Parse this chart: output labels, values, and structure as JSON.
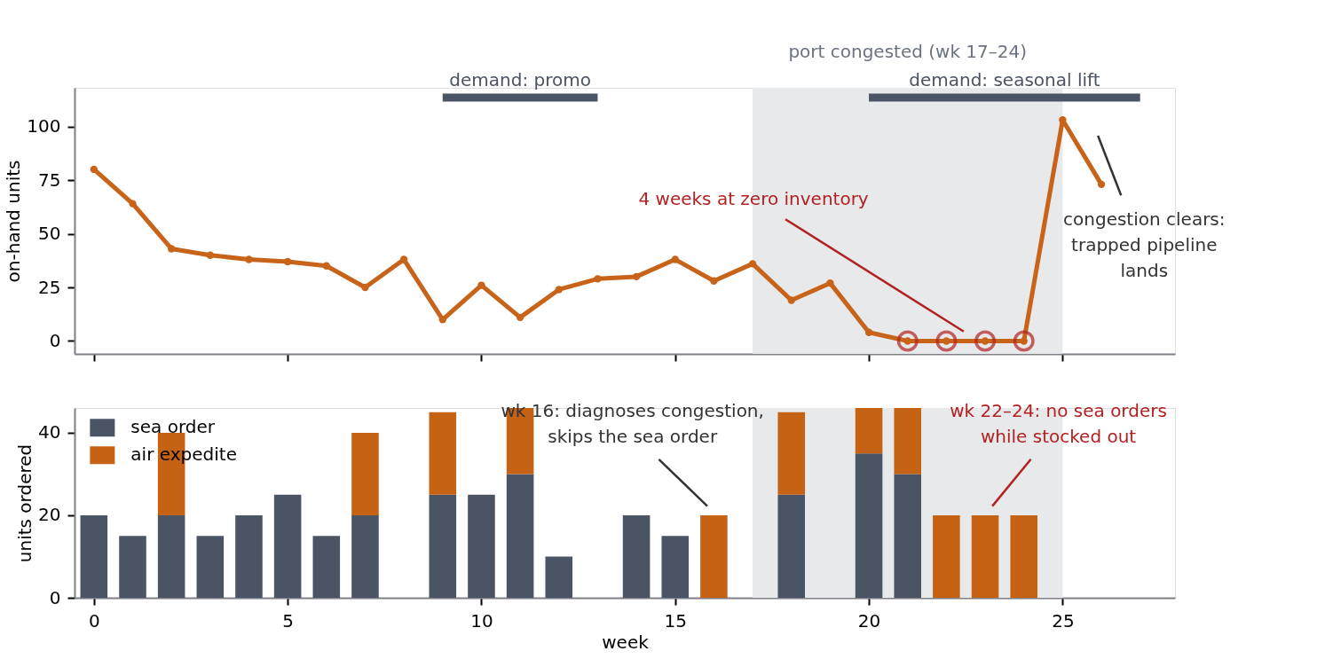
{
  "chart_data": [
    {
      "type": "line",
      "ylabel": "on-hand units",
      "x": [
        0,
        1,
        2,
        3,
        4,
        5,
        6,
        7,
        8,
        9,
        10,
        11,
        12,
        13,
        14,
        15,
        16,
        17,
        18,
        19,
        20,
        21,
        22,
        23,
        24,
        25,
        26
      ],
      "series": [
        {
          "type": "line",
          "color": "#c8641a",
          "marker": "circle",
          "values": [
            80,
            64,
            43,
            40,
            38,
            37,
            35,
            25,
            38,
            10,
            26,
            11,
            24,
            29,
            30,
            38,
            28,
            36,
            19,
            27,
            4,
            0,
            0,
            0,
            0,
            103,
            73
          ]
        },
        {
          "type": "scatter",
          "color": "#b22222",
          "marker": "circle",
          "x": [
            21,
            22,
            23,
            24
          ],
          "values": [
            0,
            0,
            0,
            0
          ]
        },
        {
          "type": "line",
          "name": "demand: promo",
          "color": "#4a5464",
          "marker": "none",
          "x": [
            9,
            13
          ],
          "values": [
            113.5,
            113.5
          ]
        },
        {
          "type": "line",
          "name": "demand: seasonal lift",
          "color": "#4a5464",
          "marker": "none",
          "x": [
            20,
            27
          ],
          "values": [
            113.5,
            113.5
          ]
        }
      ],
      "xlim": [
        -0.5,
        27.9
      ],
      "xticks": [
        0,
        5,
        10,
        15,
        20,
        25
      ],
      "ylim": [
        -6,
        118
      ],
      "yticks": [
        0,
        25,
        50,
        75,
        100
      ],
      "tick_labels": "y",
      "grid": false,
      "legend": false,
      "bands": [
        {
          "axis": "x",
          "from": 17,
          "to": 25,
          "label": "port congested (wk 17–24)",
          "color": "#e8e9eb"
        }
      ],
      "annotations": [
        "4 weeks at zero inventory",
        "congestion clears:\ntrapped pipeline\nlands"
      ]
    },
    {
      "type": "bar",
      "stacked": true,
      "xlabel": "week",
      "ylabel": "units ordered",
      "x": [
        0,
        1,
        2,
        3,
        4,
        5,
        6,
        7,
        8,
        9,
        10,
        11,
        12,
        13,
        14,
        15,
        16,
        17,
        18,
        19,
        20,
        21,
        22,
        23,
        24
      ],
      "series": [
        {
          "name": "sea order",
          "color": "#4a5464",
          "values": [
            20,
            15,
            20,
            15,
            20,
            25,
            15,
            20,
            0,
            25,
            25,
            30,
            10,
            0,
            20,
            15,
            0,
            0,
            25,
            0,
            35,
            30,
            0,
            0,
            0
          ]
        },
        {
          "name": "air expedite",
          "color": "#c56214",
          "values": [
            0,
            0,
            20,
            0,
            0,
            0,
            0,
            20,
            0,
            20,
            0,
            16,
            0,
            0,
            0,
            0,
            20,
            0,
            20,
            0,
            11,
            16,
            20,
            20,
            20
          ]
        }
      ],
      "xlim": [
        -0.5,
        27.9
      ],
      "xticks": [
        0,
        5,
        10,
        15,
        20,
        25
      ],
      "ylim": [
        0,
        46
      ],
      "yticks": [
        0,
        20,
        40
      ],
      "grid": false,
      "legend": "top left",
      "bands": [
        {
          "axis": "x",
          "from": 17,
          "to": 25,
          "color": "#e8e9eb"
        }
      ],
      "annotations": [
        "wk 16: diagnoses congestion,\nskips the sea order",
        "wk 22–24: no sea orders\nwhile stocked out"
      ]
    }
  ]
}
